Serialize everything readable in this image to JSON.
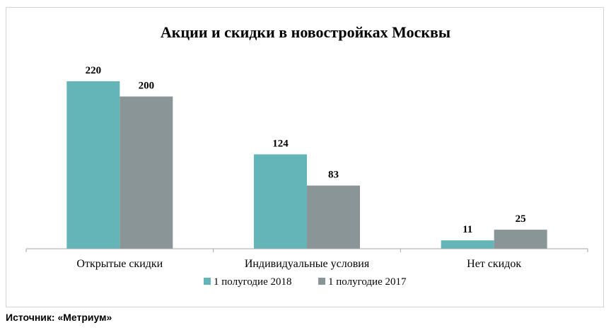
{
  "chart_data": {
    "type": "bar",
    "title": "Акции и скидки в новостройках Москвы",
    "xlabel": "",
    "ylabel": "",
    "categories": [
      "Открытые скидки",
      "Индивидуальные условия",
      "Нет скидок"
    ],
    "series": [
      {
        "name": "1 полугодие 2018",
        "values": [
          220,
          124,
          11
        ],
        "color": "#64b5b8"
      },
      {
        "name": "1 полугодие 2017",
        "values": [
          200,
          83,
          25
        ],
        "color": "#8a9598"
      }
    ],
    "ylim": [
      0,
      220
    ],
    "grid": false,
    "legend_position": "bottom",
    "data_labels": true
  },
  "source_note": "Источник: «Метриум»"
}
